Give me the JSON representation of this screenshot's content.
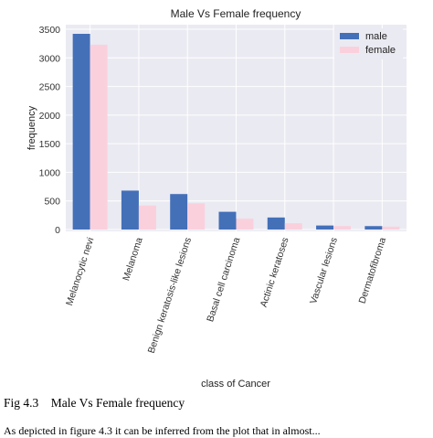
{
  "chart_data": {
    "type": "bar",
    "title": "Male Vs Female frequency",
    "xlabel": "class of Cancer",
    "ylabel": "frequency",
    "ylim": [
      0,
      3500
    ],
    "yticks": [
      0,
      500,
      1000,
      1500,
      2000,
      2500,
      3000,
      3500
    ],
    "grid": true,
    "legend_position": "top-right",
    "categories": [
      "Melanocytic nevi",
      "Melanoma",
      "Benign keratosis-like lesions",
      "Basal cell carcinoma",
      "Actinic keratoses",
      "Vascular lesions",
      "Dermatofibroma"
    ],
    "series": [
      {
        "name": "male",
        "color": "#4470b8",
        "values": [
          3420,
          680,
          620,
          310,
          210,
          70,
          60
        ]
      },
      {
        "name": "female",
        "color": "#fbd0dd",
        "values": [
          3230,
          420,
          460,
          190,
          110,
          60,
          50
        ]
      }
    ]
  },
  "caption": {
    "label": "Fig 4.3",
    "text": "Male Vs Female frequency"
  },
  "body_text": "As depicted in figure 4.3 it can be inferred from the plot that in almost..."
}
